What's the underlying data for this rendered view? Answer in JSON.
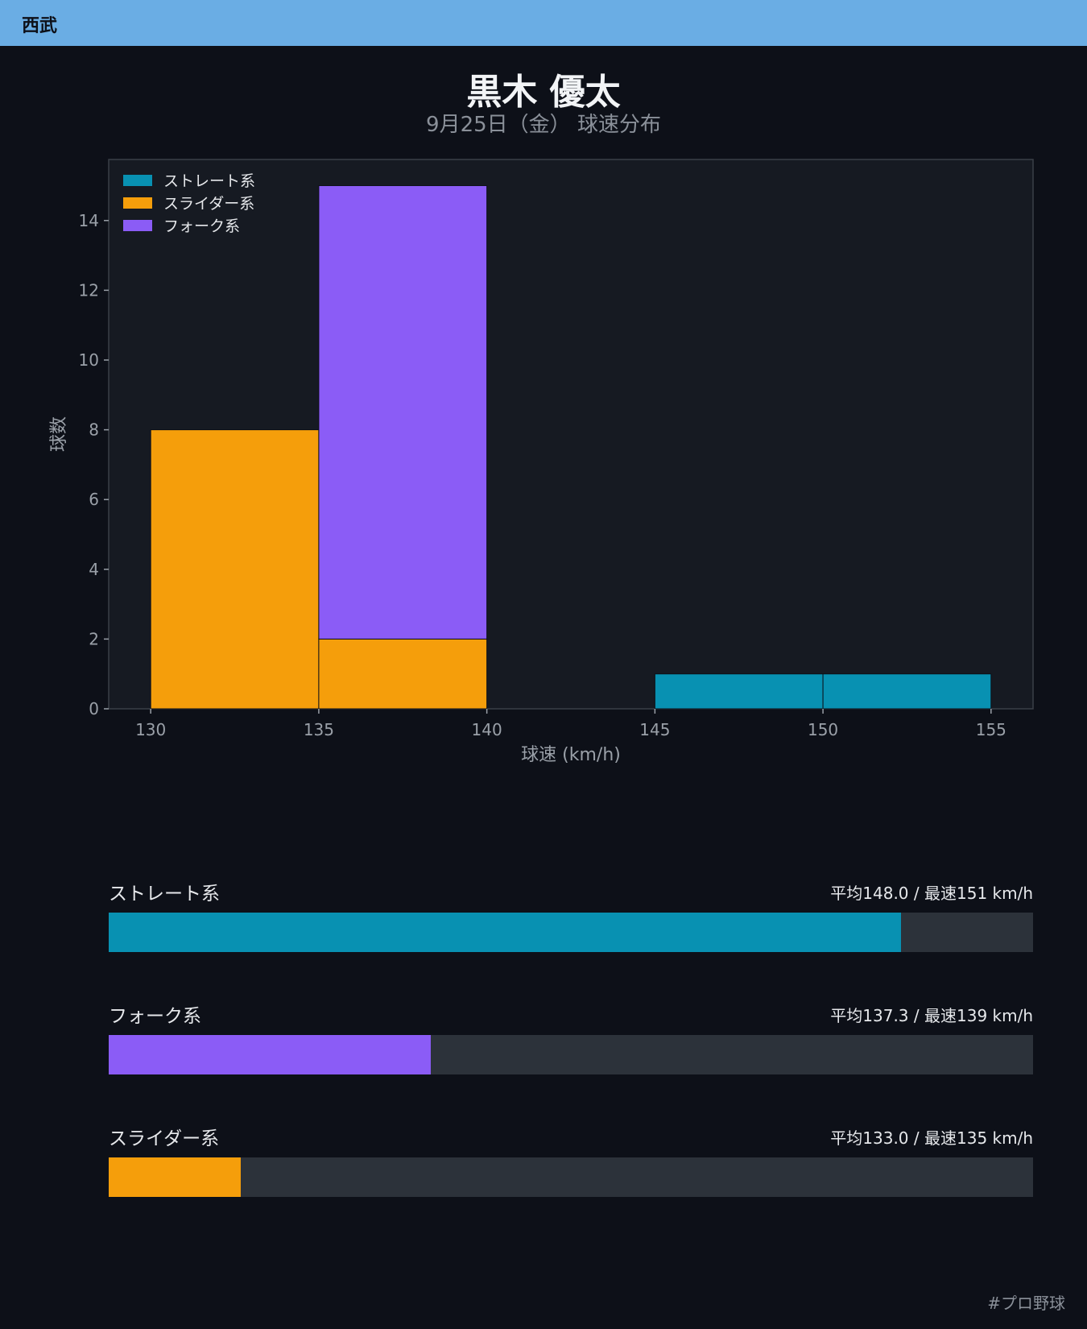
{
  "header": {
    "team": "西武"
  },
  "title": "黒木 優太",
  "subtitle": "9月25日（金） 球速分布",
  "chart_data": {
    "type": "bar",
    "stacked": true,
    "bins": [
      [
        130,
        135
      ],
      [
        135,
        140
      ],
      [
        140,
        145
      ],
      [
        145,
        150
      ],
      [
        150,
        155
      ]
    ],
    "series": [
      {
        "name": "ストレート系",
        "color": "#0891b2",
        "values": [
          0,
          0,
          0,
          1,
          1
        ]
      },
      {
        "name": "スライダー系",
        "color": "#f59e0b",
        "values": [
          8,
          2,
          0,
          0,
          0
        ]
      },
      {
        "name": "フォーク系",
        "color": "#8b5cf6",
        "values": [
          0,
          13,
          0,
          0,
          0
        ]
      }
    ],
    "xlabel": "球速 (km/h)",
    "ylabel": "球数",
    "xlim": [
      128.75,
      156.25
    ],
    "ylim": [
      0,
      15.75
    ],
    "xticks": [
      130,
      135,
      140,
      145,
      150,
      155
    ],
    "yticks": [
      0,
      2,
      4,
      6,
      8,
      10,
      12,
      14
    ],
    "legend": "top-left",
    "grid": false
  },
  "speed_bars": [
    {
      "label": "ストレート系",
      "stats": "平均148.0 / 最速151 km/h",
      "color": "#0891b2",
      "fraction": 0.857
    },
    {
      "label": "フォーク系",
      "stats": "平均137.3 / 最速139 km/h",
      "color": "#8b5cf6",
      "fraction": 0.348
    },
    {
      "label": "スライダー系",
      "stats": "平均133.0 / 最速135 km/h",
      "color": "#f59e0b",
      "fraction": 0.143
    }
  ],
  "footer": {
    "hashtag": "#プロ野球"
  }
}
